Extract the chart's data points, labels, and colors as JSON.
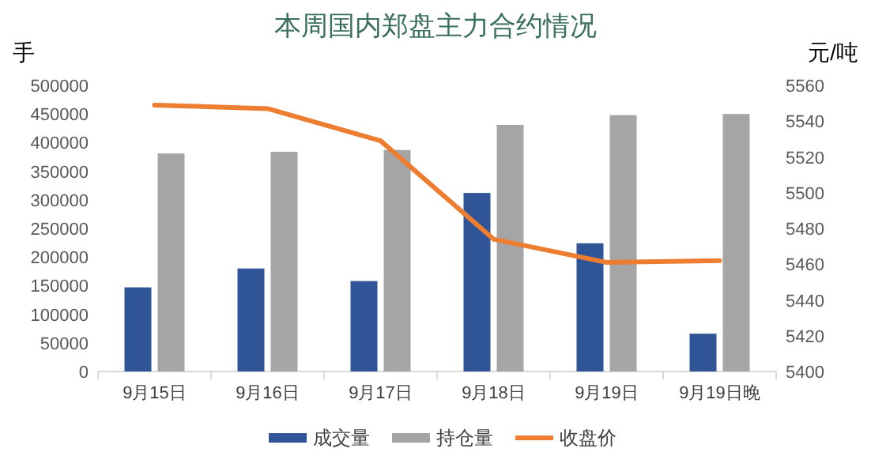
{
  "chart_data": {
    "type": "bar",
    "title": "本周国内郑盘主力合约情况",
    "ylabel": "手",
    "y2label": "元/吨",
    "categories": [
      "9月15日",
      "9月16日",
      "9月17日",
      "9月18日",
      "9月19日",
      "9月19日晚"
    ],
    "series": [
      {
        "name": "成交量",
        "color": "#2f5597",
        "values": [
          147000,
          180000,
          158000,
          312000,
          224000,
          66000
        ]
      },
      {
        "name": "持仓量",
        "color": "#a5a5a5",
        "values": [
          381000,
          384000,
          387000,
          431000,
          448000,
          450000
        ]
      },
      {
        "name": "收盘价",
        "type": "line",
        "axis": "y2",
        "color": "#ed7d31",
        "values": [
          5549,
          5547,
          5529,
          5474,
          5461,
          5462
        ]
      }
    ],
    "ylim": [
      0,
      500000
    ],
    "yticks": [
      0,
      50000,
      100000,
      150000,
      200000,
      250000,
      300000,
      350000,
      400000,
      450000,
      500000
    ],
    "y2lim": [
      5400,
      5560
    ],
    "y2ticks": [
      5400,
      5420,
      5440,
      5460,
      5480,
      5500,
      5520,
      5540,
      5560
    ],
    "legend": "bottom",
    "grid": false
  }
}
